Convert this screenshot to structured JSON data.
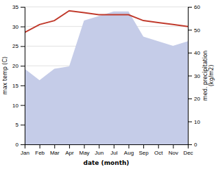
{
  "chart_data": {
    "type": "line",
    "categories": [
      "Jan",
      "Feb",
      "Mar",
      "Apr",
      "May",
      "Jun",
      "Jul",
      "Aug",
      "Sep",
      "Oct",
      "Nov",
      "Dec"
    ],
    "series": [
      {
        "type": "area",
        "axis": "y2",
        "color": "#c5cce8",
        "values": [
          33.0,
          28.0,
          33.0,
          34.0,
          54.0,
          56.0,
          58.0,
          58.0,
          47.0,
          45.0,
          43.0,
          45.0
        ]
      },
      {
        "type": "line",
        "color": "#c0392b",
        "values": [
          28.5,
          30.5,
          31.5,
          34.0,
          33.5,
          33.0,
          33.0,
          33.0,
          31.5,
          31.0,
          30.5,
          30.0
        ]
      }
    ],
    "xlabel": "date (month)",
    "ylabel": "max temp (C)",
    "y2label": "med. precipitation\n(kg/m2)",
    "ylim": [
      0,
      35
    ],
    "yticks": [
      0,
      5,
      10,
      15,
      20,
      25,
      30,
      35
    ],
    "y2lim": [
      0,
      60
    ],
    "y2ticks": [
      0,
      10,
      20,
      30,
      40,
      50,
      60
    ],
    "grid": true
  }
}
